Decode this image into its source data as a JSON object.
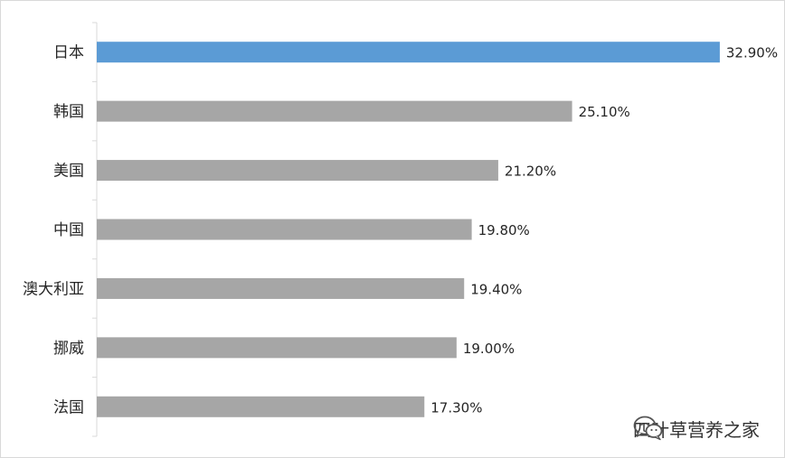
{
  "chart_data": {
    "type": "bar",
    "orientation": "horizontal",
    "categories": [
      "日本",
      "韩国",
      "美国",
      "中国",
      "澳大利亚",
      "挪威",
      "法国"
    ],
    "values": [
      32.9,
      25.1,
      21.2,
      19.8,
      19.4,
      19.0,
      17.3
    ],
    "value_labels": [
      "32.90%",
      "25.10%",
      "21.20%",
      "19.80%",
      "19.40%",
      "19.00%",
      "17.30%"
    ],
    "xlim": [
      0,
      33
    ],
    "grid": false,
    "legend": "none",
    "colors": {
      "highlight": "#5b9bd5",
      "default": "#a6a6a6",
      "axis": "#d9d9d9",
      "text": "#262626"
    },
    "highlight_index": 0
  },
  "watermark": {
    "icon": "wechat-icon",
    "text": "四叶草营养之家"
  }
}
